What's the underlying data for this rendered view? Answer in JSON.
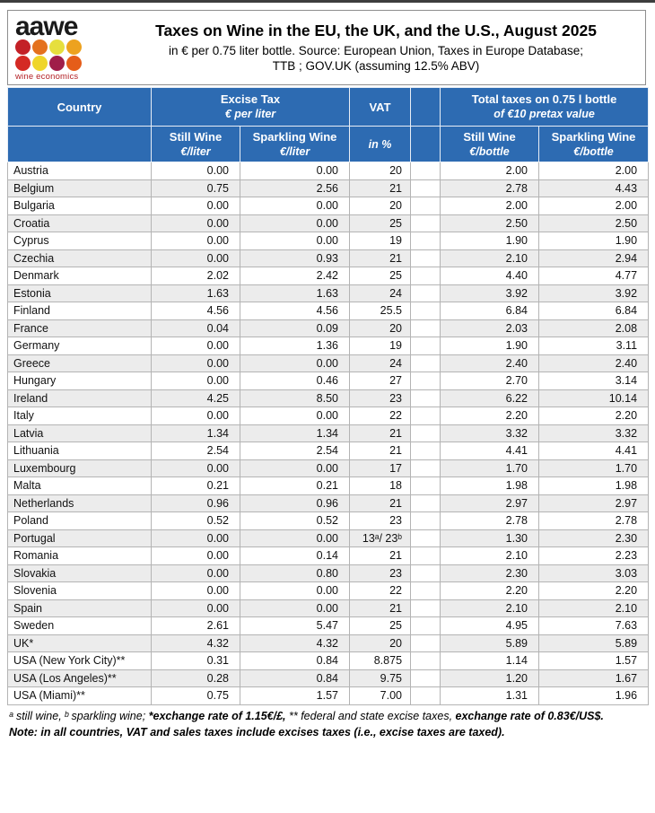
{
  "page": {
    "logo": {
      "text": "aawe",
      "tagline": "wine economics",
      "dot_colors": [
        [
          "#c32127",
          "#e4711e",
          "#e6df3e",
          "#eda21f"
        ],
        [
          "#d42a24",
          "#efd52a",
          "#a01e49",
          "#e55d19"
        ]
      ]
    },
    "title": "Taxes on Wine in the EU, the UK, and the U.S., August 2025",
    "subtitle_line1": "in € per 0.75 liter bottle. Source: European Union, Taxes in Europe Database;",
    "subtitle_line2": "TTB ; GOV.UK (assuming 12.5% ABV)"
  },
  "table": {
    "header": {
      "country": "Country",
      "excise_line1": "Excise Tax",
      "excise_line2": "€ per liter",
      "vat": "VAT",
      "total_line1": "Total taxes on 0.75 l bottle",
      "total_line2": "of €10 pretax value",
      "sub": {
        "still": "Still Wine",
        "sparkling": "Sparkling Wine",
        "per_liter": "€/liter",
        "per_bottle": "€/bottle",
        "vat_unit": "in %"
      }
    }
  },
  "footnotes": {
    "line1_a": "ᵃ still wine, ᵇ sparkling wine; ",
    "line1_b": "*exchange rate of 1.15€/£, ",
    "line1_c": "** federal and state excise taxes, ",
    "line1_d": "exchange rate of 0.83€/US$.",
    "line2": "Note: in all countries, VAT and sales taxes include excises taxes (i.e., excise taxes are taxed)."
  },
  "colors": {
    "header_blue": "#2d6bb2",
    "row_alt_gray": "#ececec",
    "border_gray": "#b4b4b4",
    "logo_red": "#b32025"
  },
  "chart_data": {
    "type": "table",
    "title": "Taxes on Wine in the EU, the UK, and the U.S., August 2025",
    "columns": [
      "Country",
      "Excise Tax Still Wine €/liter",
      "Excise Tax Sparkling Wine €/liter",
      "VAT in %",
      "Total taxes Still Wine €/bottle",
      "Total taxes Sparkling Wine €/bottle"
    ],
    "rows": [
      [
        "Austria",
        "0.00",
        "0.00",
        "20",
        "2.00",
        "2.00"
      ],
      [
        "Belgium",
        "0.75",
        "2.56",
        "21",
        "2.78",
        "4.43"
      ],
      [
        "Bulgaria",
        "0.00",
        "0.00",
        "20",
        "2.00",
        "2.00"
      ],
      [
        "Croatia",
        "0.00",
        "0.00",
        "25",
        "2.50",
        "2.50"
      ],
      [
        "Cyprus",
        "0.00",
        "0.00",
        "19",
        "1.90",
        "1.90"
      ],
      [
        "Czechia",
        "0.00",
        "0.93",
        "21",
        "2.10",
        "2.94"
      ],
      [
        "Denmark",
        "2.02",
        "2.42",
        "25",
        "4.40",
        "4.77"
      ],
      [
        "Estonia",
        "1.63",
        "1.63",
        "24",
        "3.92",
        "3.92"
      ],
      [
        "Finland",
        "4.56",
        "4.56",
        "25.5",
        "6.84",
        "6.84"
      ],
      [
        "France",
        "0.04",
        "0.09",
        "20",
        "2.03",
        "2.08"
      ],
      [
        "Germany",
        "0.00",
        "1.36",
        "19",
        "1.90",
        "3.11"
      ],
      [
        "Greece",
        "0.00",
        "0.00",
        "24",
        "2.40",
        "2.40"
      ],
      [
        "Hungary",
        "0.00",
        "0.46",
        "27",
        "2.70",
        "3.14"
      ],
      [
        "Ireland",
        "4.25",
        "8.50",
        "23",
        "6.22",
        "10.14"
      ],
      [
        "Italy",
        "0.00",
        "0.00",
        "22",
        "2.20",
        "2.20"
      ],
      [
        "Latvia",
        "1.34",
        "1.34",
        "21",
        "3.32",
        "3.32"
      ],
      [
        "Lithuania",
        "2.54",
        "2.54",
        "21",
        "4.41",
        "4.41"
      ],
      [
        "Luxembourg",
        "0.00",
        "0.00",
        "17",
        "1.70",
        "1.70"
      ],
      [
        "Malta",
        "0.21",
        "0.21",
        "18",
        "1.98",
        "1.98"
      ],
      [
        "Netherlands",
        "0.96",
        "0.96",
        "21",
        "2.97",
        "2.97"
      ],
      [
        "Poland",
        "0.52",
        "0.52",
        "23",
        "2.78",
        "2.78"
      ],
      [
        "Portugal",
        "0.00",
        "0.00",
        "13ᵃ/ 23ᵇ",
        "1.30",
        "2.30"
      ],
      [
        "Romania",
        "0.00",
        "0.14",
        "21",
        "2.10",
        "2.23"
      ],
      [
        "Slovakia",
        "0.00",
        "0.80",
        "23",
        "2.30",
        "3.03"
      ],
      [
        "Slovenia",
        "0.00",
        "0.00",
        "22",
        "2.20",
        "2.20"
      ],
      [
        "Spain",
        "0.00",
        "0.00",
        "21",
        "2.10",
        "2.10"
      ],
      [
        "Sweden",
        "2.61",
        "5.47",
        "25",
        "4.95",
        "7.63"
      ],
      [
        "UK*",
        "4.32",
        "4.32",
        "20",
        "5.89",
        "5.89"
      ],
      [
        "USA (New York City)**",
        "0.31",
        "0.84",
        "8.875",
        "1.14",
        "1.57"
      ],
      [
        "USA (Los Angeles)**",
        "0.28",
        "0.84",
        "9.75",
        "1.20",
        "1.67"
      ],
      [
        "USA (Miami)**",
        "0.75",
        "1.57",
        "7.00",
        "1.31",
        "1.96"
      ]
    ]
  }
}
